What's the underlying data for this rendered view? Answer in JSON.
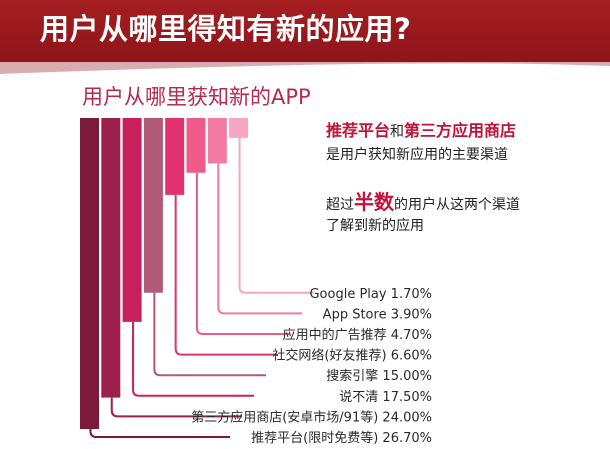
{
  "header": {
    "title": "用户从哪里得知有新的应用?"
  },
  "notes": {
    "line1": {
      "part1": "推荐平台",
      "part2": "和",
      "part3": "第三方应用商店"
    },
    "line2": "是用户获知新应用的主要渠道",
    "line3": {
      "part1": "超过",
      "part2": "半数",
      "part3": "的用户从这两个渠道"
    },
    "line4": "了解到新的应用"
  },
  "colors": {
    "header": "#a51e22",
    "accent": "#c11339",
    "bars": [
      "#7c1a3c",
      "#9d1f4b",
      "#c7205c",
      "#b05a78",
      "#e0326f",
      "#ee5a8a",
      "#f27ba4",
      "#f6a6c1"
    ]
  },
  "chart_data": {
    "type": "bar",
    "title": "用户从哪里获知新的APP",
    "unit": "%",
    "categories": [
      "推荐平台(限时免费等)",
      "第三方应用商店(安卓市场/91等)",
      "说不清",
      "搜索引擎",
      "社交网络(好友推荐)",
      "应用中的广告推荐",
      "App Store",
      "Google Play"
    ],
    "values": [
      26.7,
      24.0,
      17.5,
      15.0,
      6.6,
      4.7,
      3.9,
      1.7
    ],
    "value_labels": [
      "26.70%",
      "24.00%",
      "17.50%",
      "15.00%",
      "6.60%",
      "4.70%",
      "3.90%",
      "1.70%"
    ]
  }
}
